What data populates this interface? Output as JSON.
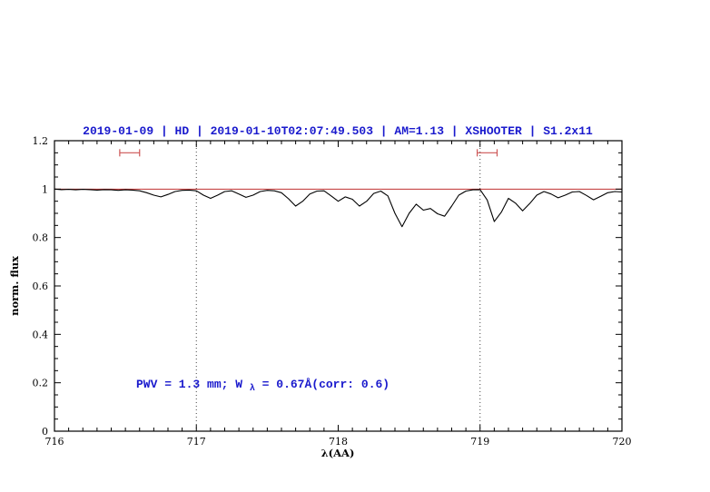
{
  "page": {
    "background": "#ffffff"
  },
  "chart_data": {
    "type": "line",
    "title": "2019-01-09 | HD | 2019-01-10T02:07:49.503 | AM=1.13 | XSHOOTER | S1.2x11",
    "xlabel": "λ(AA)",
    "ylabel": "norm. flux",
    "xlim": [
      716,
      720
    ],
    "ylim": [
      0,
      1.2
    ],
    "x_major_ticks": [
      716,
      717,
      718,
      719,
      720
    ],
    "x_tick_labels": [
      "716",
      "717",
      "718",
      "719",
      "720"
    ],
    "x_minor_step": 0.1,
    "y_major_ticks": [
      0,
      0.2,
      0.4,
      0.6,
      0.8,
      1.0,
      1.2
    ],
    "y_tick_labels": [
      "0",
      "0.2",
      "0.4",
      "0.6",
      "0.8",
      "1",
      "1.2"
    ],
    "y_minor_step": 0.05,
    "grid": "off",
    "dotted_vlines": [
      717,
      719
    ],
    "continuum_line": {
      "y": 1.0
    },
    "markers": [
      {
        "type": "hbracket",
        "x1": 716.46,
        "x2": 716.6,
        "y": 1.15
      },
      {
        "type": "hbracket",
        "x1": 718.98,
        "x2": 719.12,
        "y": 1.15
      }
    ],
    "annotation": {
      "pre": "PWV = 1.3 mm; W",
      "sub": "λ",
      "post": " = 0.67Å(corr: 0.6)",
      "x": 716.58,
      "y": 0.2
    },
    "colors": {
      "title": "#1a1acd",
      "annotation": "#1a1acd",
      "continuum": "#c03030",
      "marker": "#cd5555",
      "spectrum": "#000000",
      "dotted": "#444444",
      "frame": "#000000"
    },
    "series": [
      {
        "name": "spectrum",
        "points": [
          [
            716.0,
            1.0
          ],
          [
            716.05,
            0.998
          ],
          [
            716.1,
            0.999
          ],
          [
            716.15,
            0.997
          ],
          [
            716.2,
            0.999
          ],
          [
            716.25,
            0.998
          ],
          [
            716.3,
            0.996
          ],
          [
            716.35,
            0.998
          ],
          [
            716.4,
            0.997
          ],
          [
            716.45,
            0.995
          ],
          [
            716.5,
            0.997
          ],
          [
            716.55,
            0.996
          ],
          [
            716.6,
            0.993
          ],
          [
            716.65,
            0.985
          ],
          [
            716.7,
            0.975
          ],
          [
            716.75,
            0.968
          ],
          [
            716.8,
            0.978
          ],
          [
            716.85,
            0.99
          ],
          [
            716.9,
            0.995
          ],
          [
            716.95,
            0.996
          ],
          [
            717.0,
            0.993
          ],
          [
            717.05,
            0.975
          ],
          [
            717.1,
            0.962
          ],
          [
            717.15,
            0.975
          ],
          [
            717.2,
            0.99
          ],
          [
            717.25,
            0.993
          ],
          [
            717.3,
            0.98
          ],
          [
            717.35,
            0.966
          ],
          [
            717.4,
            0.975
          ],
          [
            717.45,
            0.99
          ],
          [
            717.5,
            0.995
          ],
          [
            717.55,
            0.993
          ],
          [
            717.6,
            0.985
          ],
          [
            717.65,
            0.96
          ],
          [
            717.7,
            0.93
          ],
          [
            717.75,
            0.95
          ],
          [
            717.8,
            0.98
          ],
          [
            717.85,
            0.992
          ],
          [
            717.9,
            0.993
          ],
          [
            717.95,
            0.972
          ],
          [
            718.0,
            0.95
          ],
          [
            718.05,
            0.968
          ],
          [
            718.1,
            0.958
          ],
          [
            718.15,
            0.93
          ],
          [
            718.2,
            0.95
          ],
          [
            718.25,
            0.982
          ],
          [
            718.3,
            0.992
          ],
          [
            718.35,
            0.972
          ],
          [
            718.4,
            0.9
          ],
          [
            718.45,
            0.845
          ],
          [
            718.5,
            0.9
          ],
          [
            718.55,
            0.938
          ],
          [
            718.6,
            0.913
          ],
          [
            718.65,
            0.92
          ],
          [
            718.7,
            0.898
          ],
          [
            718.75,
            0.888
          ],
          [
            718.8,
            0.93
          ],
          [
            718.85,
            0.975
          ],
          [
            718.9,
            0.992
          ],
          [
            718.95,
            0.997
          ],
          [
            719.0,
            0.998
          ],
          [
            719.05,
            0.955
          ],
          [
            719.1,
            0.866
          ],
          [
            719.15,
            0.905
          ],
          [
            719.2,
            0.962
          ],
          [
            719.25,
            0.942
          ],
          [
            719.3,
            0.91
          ],
          [
            719.35,
            0.94
          ],
          [
            719.4,
            0.975
          ],
          [
            719.45,
            0.99
          ],
          [
            719.5,
            0.98
          ],
          [
            719.55,
            0.964
          ],
          [
            719.6,
            0.975
          ],
          [
            719.65,
            0.988
          ],
          [
            719.7,
            0.99
          ],
          [
            719.75,
            0.974
          ],
          [
            719.8,
            0.956
          ],
          [
            719.85,
            0.97
          ],
          [
            719.9,
            0.985
          ],
          [
            719.95,
            0.99
          ],
          [
            720.0,
            0.988
          ]
        ]
      }
    ]
  }
}
